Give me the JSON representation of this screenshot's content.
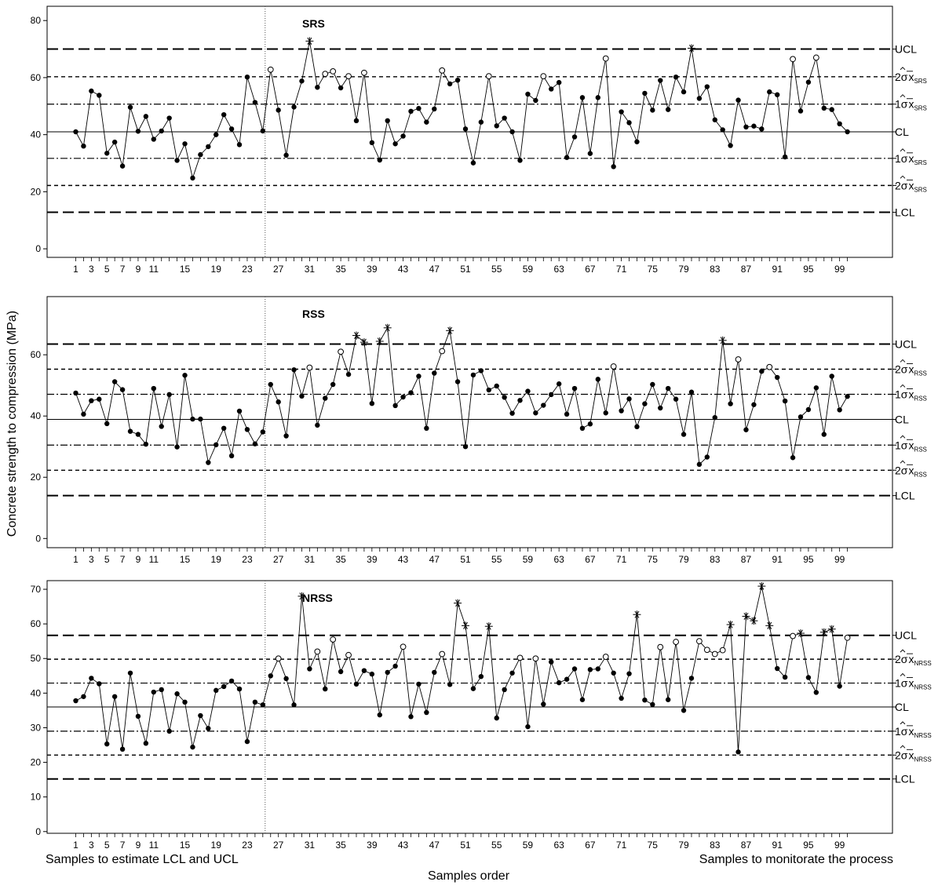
{
  "ylabel": "Concrete strength to compression (MPa)",
  "xlabel": "Samples order",
  "footer_left": "Samples to estimate LCL and UCL",
  "footer_right": "Samples to monitorate the process",
  "x_tick_labels": [
    1,
    3,
    5,
    7,
    9,
    11,
    15,
    19,
    23,
    27,
    31,
    35,
    39,
    43,
    47,
    51,
    55,
    59,
    63,
    67,
    71,
    75,
    79,
    83,
    87,
    91,
    95,
    99
  ],
  "split_after_sample": 25,
  "chart_data": [
    {
      "type": "line",
      "title": "SRS",
      "ylim": [
        -3,
        85
      ],
      "yticks": [
        0,
        20,
        40,
        60,
        80
      ],
      "limits": {
        "UCL": 70,
        "plus2": 60.3,
        "plus1": 50.7,
        "CL": 41,
        "minus1": 31.7,
        "minus2": 22.2,
        "LCL": 12.8
      },
      "limit_labels": {
        "UCL": "UCL",
        "plus2": "2σ",
        "plus1": "1σ",
        "CL": "CL",
        "minus1": "1σ",
        "minus2": "2σ",
        "LCL": "LCL"
      },
      "sub": "SRS",
      "values": [
        41,
        36,
        55.3,
        53.8,
        33.5,
        37.4,
        29,
        49.6,
        41.2,
        46.4,
        38.4,
        41.3,
        45.8,
        31,
        36.8,
        24.8,
        33,
        35.8,
        40,
        47,
        42,
        36.5,
        60.2,
        51.3,
        41.3,
        62.8,
        48.6,
        32.8,
        49.7,
        58.8,
        72.8,
        56.6,
        61.3,
        62.2,
        56.4,
        60.5,
        44.9,
        61.7,
        37.2,
        31.1,
        44.9,
        36.8,
        39.5,
        48.2,
        49.2,
        44.4,
        49,
        62.5,
        57.8,
        59.1,
        42,
        30.1,
        44.4,
        60.5,
        43.1,
        45.8,
        41,
        31,
        54.2,
        52,
        60.5,
        56,
        58.3,
        32,
        39.2,
        53,
        33.4,
        53,
        66.7,
        28.8,
        48,
        44.2,
        37.5,
        54.5,
        48.6,
        59,
        48.8,
        60.2,
        55,
        70.3,
        52.7,
        56.8,
        45.2,
        41.7,
        36.2,
        52.1,
        42.7,
        43,
        42,
        55,
        54,
        32.2,
        66.5,
        48.3,
        58.4,
        67,
        49.3,
        48.8,
        43.8,
        41
      ]
    },
    {
      "type": "line",
      "title": "RSS",
      "ylim": [
        -3,
        79
      ],
      "yticks": [
        0,
        20,
        40,
        60
      ],
      "limits": {
        "UCL": 63.5,
        "plus2": 55.3,
        "plus1": 47.1,
        "CL": 38.9,
        "minus1": 30.5,
        "minus2": 22.3,
        "LCL": 14
      },
      "limit_labels": {
        "UCL": "UCL",
        "plus2": "2σ",
        "plus1": "1σ",
        "CL": "CL",
        "minus1": "1σ",
        "minus2": "2σ",
        "LCL": "LCL"
      },
      "sub": "RSS",
      "values": [
        47.5,
        40.6,
        45,
        45.5,
        37.5,
        51.2,
        48.6,
        35,
        34,
        30.8,
        49,
        36.6,
        47,
        29.9,
        53.3,
        39,
        39,
        24.8,
        30.6,
        36,
        27,
        41.6,
        35.6,
        30.9,
        34.8,
        50.3,
        44.6,
        33.5,
        55.1,
        46.5,
        55.8,
        37,
        45.8,
        50.3,
        61,
        53.6,
        66.3,
        64.1,
        44.1,
        64.4,
        68.8,
        43.4,
        46.2,
        47.6,
        53,
        36,
        54,
        61.2,
        67.9,
        51.2,
        30,
        53.4,
        54.8,
        48.5,
        49.8,
        46.1,
        40.9,
        45.1,
        48.1,
        41,
        43.5,
        47,
        50.5,
        40.6,
        49,
        36,
        37.4,
        52,
        41,
        56.2,
        41.7,
        45.6,
        36.5,
        44,
        50.3,
        42.6,
        49,
        45.5,
        34,
        47.8,
        24.2,
        26.6,
        39.5,
        64.7,
        44,
        58.5,
        35.5,
        43.7,
        54.6,
        56,
        52.6,
        44.9,
        26.4,
        39.7,
        42.1,
        49.2,
        34,
        53,
        42,
        46.4
      ]
    },
    {
      "type": "line",
      "title": "NRSS",
      "ylim": [
        -0.5,
        72.5
      ],
      "yticks": [
        0,
        10,
        20,
        30,
        40,
        50,
        60,
        70
      ],
      "limits": {
        "UCL": 56.7,
        "plus2": 49.8,
        "plus1": 42.9,
        "CL": 36,
        "minus1": 29,
        "minus2": 22.1,
        "LCL": 15.2
      },
      "limit_labels": {
        "UCL": "UCL",
        "plus2": "2σ",
        "plus1": "1σ",
        "CL": "CL",
        "minus1": "1σ",
        "minus2": "2σ",
        "LCL": "LCL"
      },
      "sub": "NRSS",
      "values": [
        37.8,
        39,
        44.3,
        42.7,
        25.3,
        39,
        23.8,
        45.8,
        33.3,
        25.5,
        40.3,
        41,
        29,
        39.8,
        37.4,
        24.4,
        33.5,
        29.8,
        40.8,
        41.9,
        43.5,
        41.2,
        26,
        37.4,
        36.6,
        45,
        50,
        44.2,
        36.6,
        68,
        47,
        52,
        41.2,
        55.5,
        46.2,
        51,
        42.6,
        46.5,
        45.5,
        33.7,
        46,
        47.8,
        53.4,
        33.2,
        42.6,
        34.4,
        46,
        51.3,
        42.5,
        66,
        59.5,
        41.3,
        44.8,
        59.3,
        32.8,
        41,
        45.8,
        50.2,
        30.3,
        50,
        36.8,
        49,
        43,
        44,
        47,
        38.1,
        46.8,
        47,
        50.5,
        45.8,
        38.5,
        45.6,
        62.7,
        38,
        36.7,
        53.3,
        38.1,
        54.8,
        35,
        44.3,
        55,
        52.5,
        51.3,
        52.4,
        59.8,
        23,
        62.2,
        60.9,
        70.9,
        59.5,
        47.1,
        44.6,
        56.5,
        57.3,
        44.5,
        40.2,
        57.6,
        58.5,
        42,
        56
      ]
    }
  ]
}
